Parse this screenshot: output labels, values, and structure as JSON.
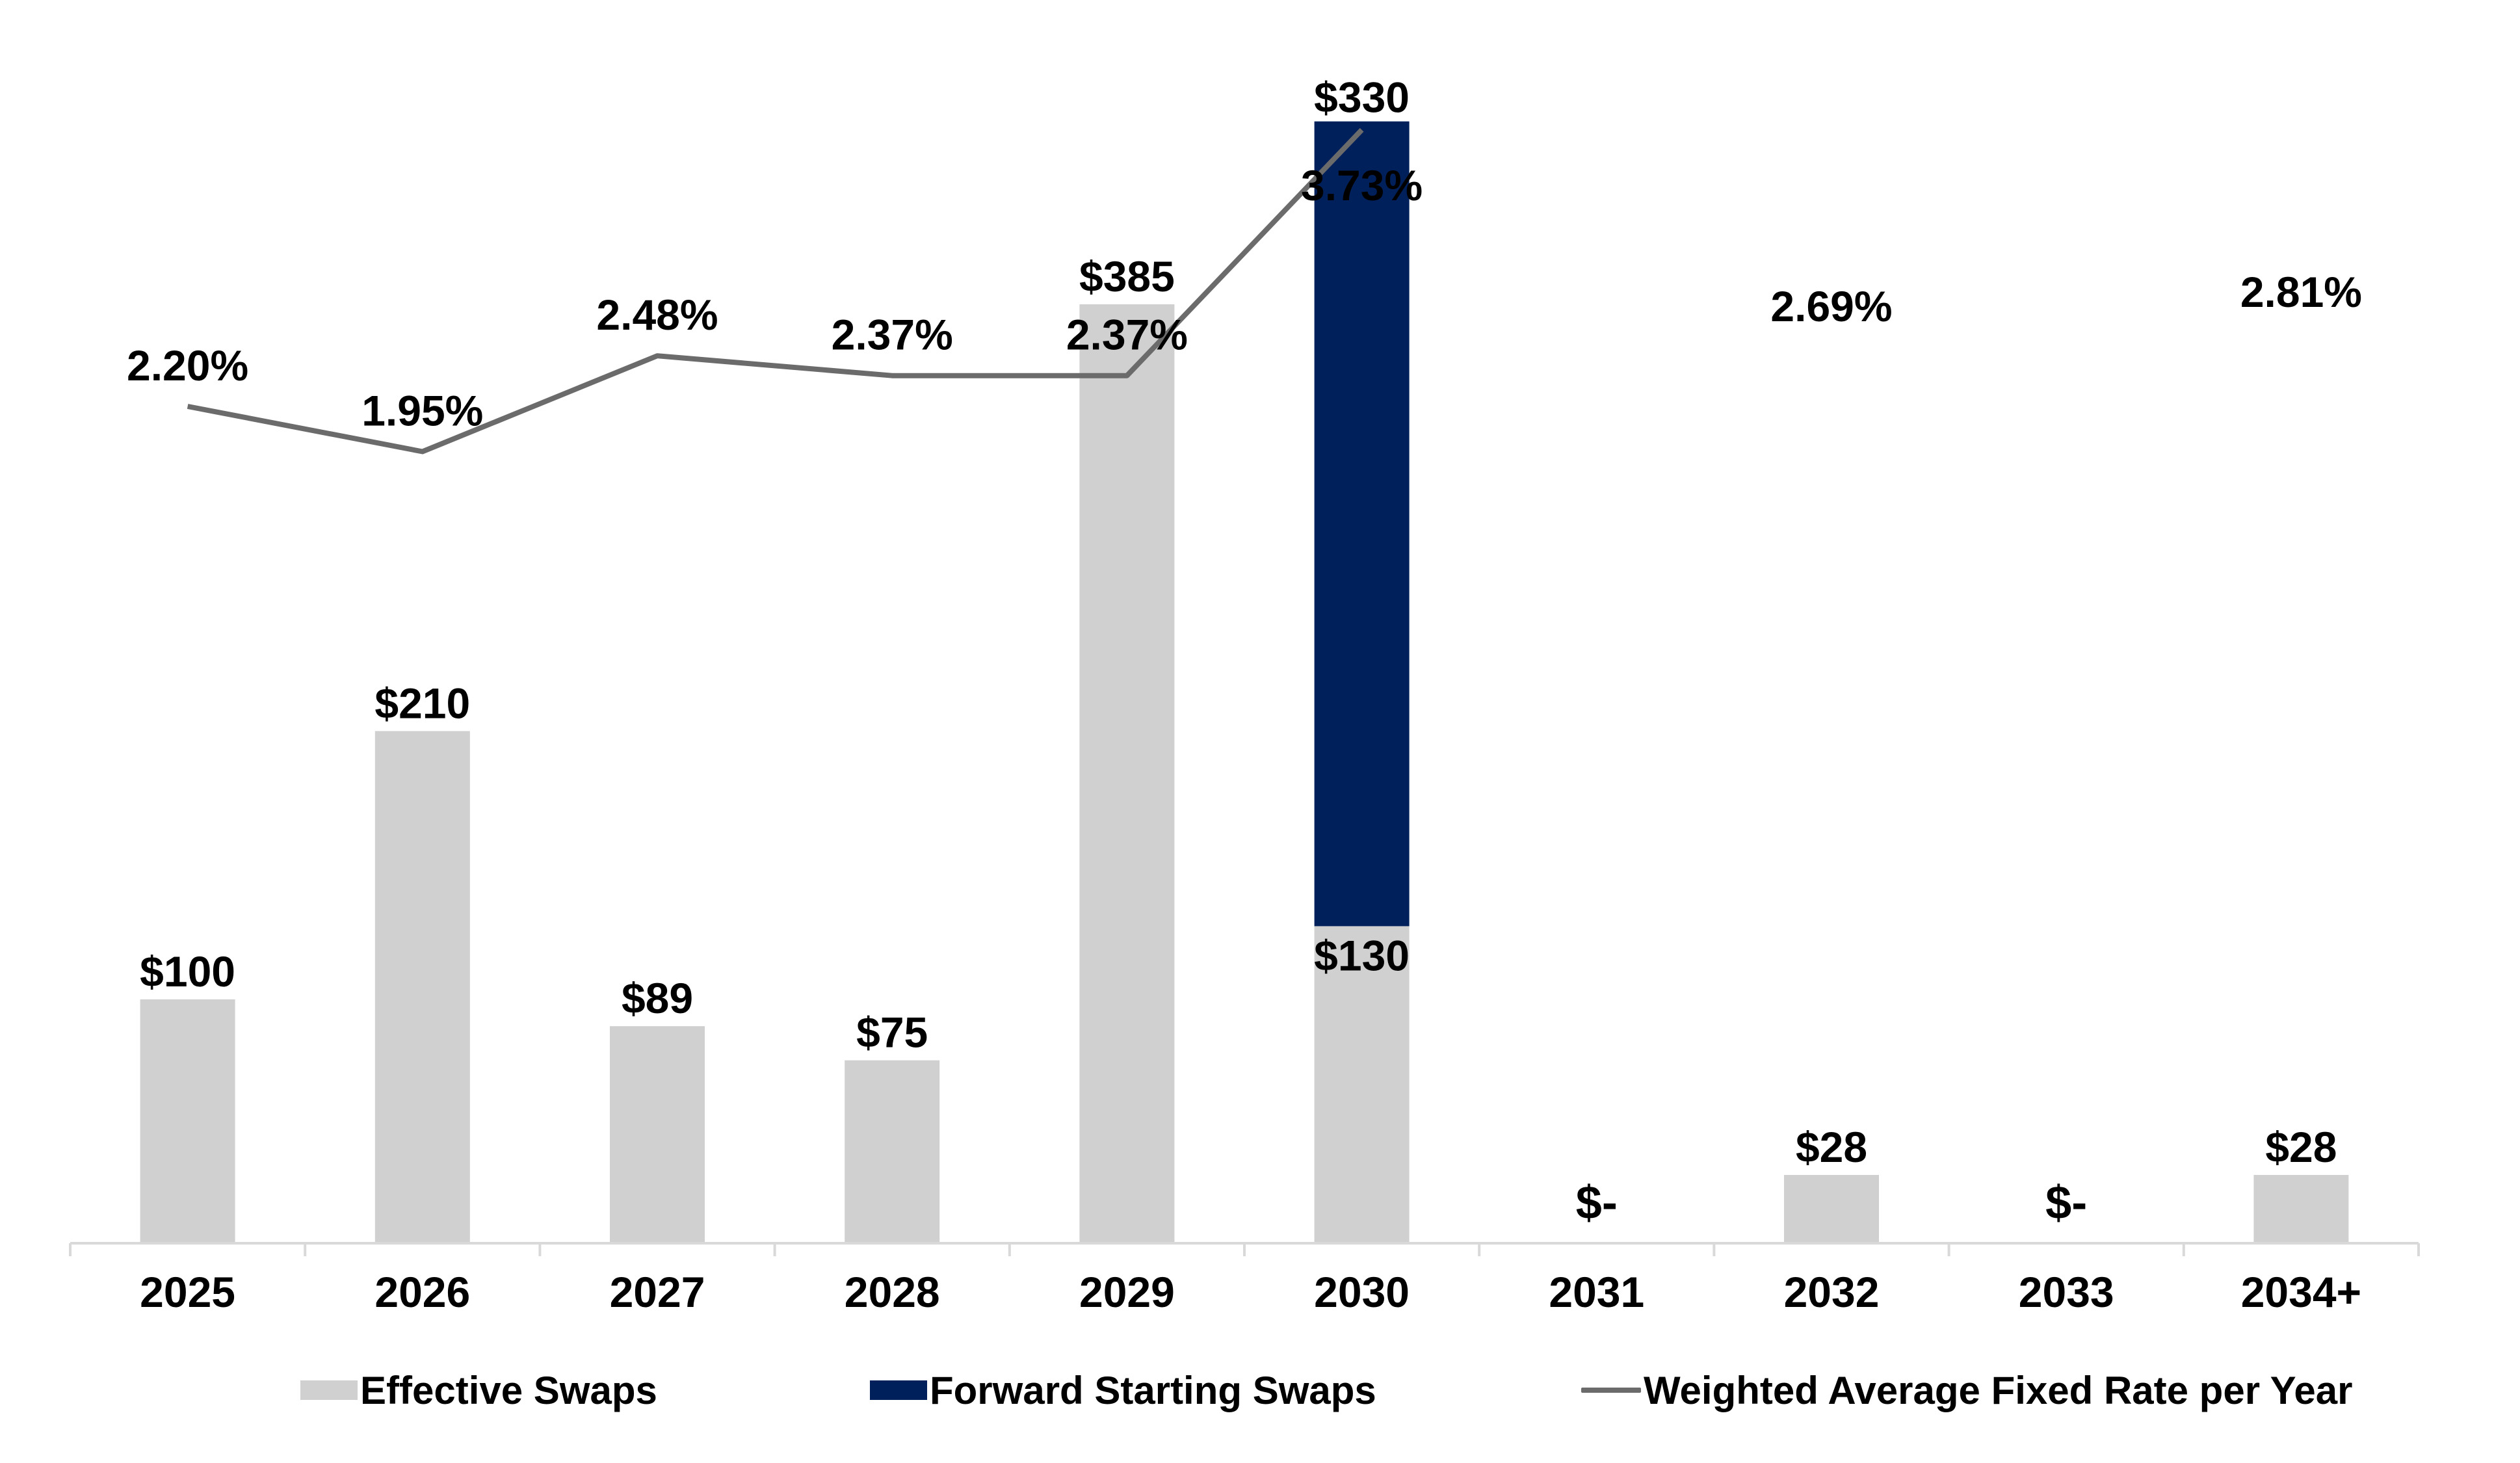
{
  "colors": {
    "effective": "#d0d0d0",
    "forward": "#00205b",
    "rate_line": "#6b6b6b",
    "axis": "#d9d9d9",
    "text": "#000000"
  },
  "chart_data": {
    "type": "bar",
    "stacked": true,
    "categories": [
      "2025",
      "2026",
      "2027",
      "2028",
      "2029",
      "2030",
      "2031",
      "2032",
      "2033",
      "2034+"
    ],
    "series": [
      {
        "name": "Effective Swaps",
        "type": "bar",
        "values": [
          100,
          210,
          89,
          75,
          385,
          130,
          0,
          28,
          0,
          28
        ],
        "labels": [
          "$100",
          "$210",
          "$89",
          "$75",
          "$385",
          "$130",
          "$-",
          "$28",
          "$-",
          "$28"
        ]
      },
      {
        "name": "Forward Starting Swaps",
        "type": "bar",
        "values": [
          0,
          0,
          0,
          0,
          0,
          330,
          0,
          0,
          0,
          0
        ],
        "labels": [
          "",
          "",
          "",
          "",
          "",
          "$330",
          "",
          "",
          "",
          ""
        ]
      },
      {
        "name": "Weighted Average Fixed Rate per Year",
        "type": "line",
        "values": [
          2.2,
          1.95,
          2.48,
          2.37,
          2.37,
          3.73,
          2.69,
          null,
          2.81,
          null
        ],
        "labels": [
          "2.20%",
          "1.95%",
          "2.48%",
          "2.37%",
          "2.37%",
          "3.73%",
          "2.69%",
          "",
          "2.81%",
          ""
        ],
        "line_drawn_through": "2030"
      }
    ],
    "rate_label_positions": [
      "2025",
      "2026",
      "2027",
      "2028",
      "2029",
      "2030",
      "2032",
      "",
      "2034+",
      ""
    ],
    "ylim_bars": [
      0,
      500
    ],
    "legend_position": "bottom",
    "grid": false
  },
  "legend": [
    {
      "label": "Effective Swaps",
      "marker": "box",
      "color_key": "effective"
    },
    {
      "label": "Forward Starting Swaps",
      "marker": "box",
      "color_key": "forward"
    },
    {
      "label": "Weighted Average Fixed Rate per Year",
      "marker": "line",
      "color_key": "rate_line"
    }
  ]
}
